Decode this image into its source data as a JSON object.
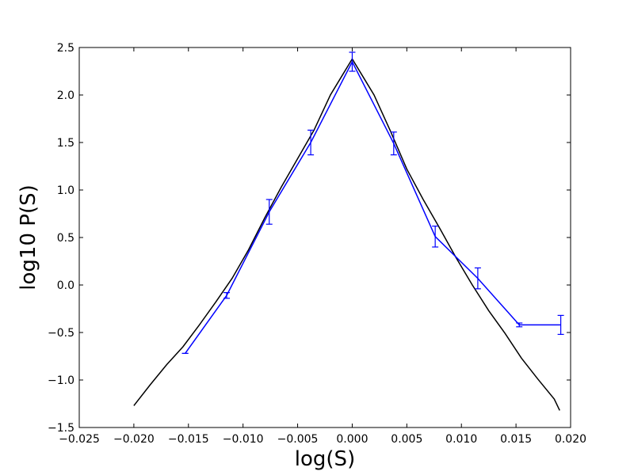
{
  "chart_data": {
    "type": "line",
    "title": "",
    "xlabel": "log(S)",
    "ylabel": "log10 P(S)",
    "xlim": [
      -0.025,
      0.02
    ],
    "ylim": [
      -1.5,
      2.5
    ],
    "xticks": [
      -0.025,
      -0.02,
      -0.015,
      -0.01,
      -0.005,
      0.0,
      0.005,
      0.01,
      0.015,
      0.02
    ],
    "xtick_labels": [
      "−0.025",
      "−0.020",
      "−0.015",
      "−0.010",
      "−0.005",
      "0.000",
      "0.005",
      "0.010",
      "0.015",
      "0.020"
    ],
    "yticks": [
      -1.5,
      -1.0,
      -0.5,
      0.0,
      0.5,
      1.0,
      1.5,
      2.0,
      2.5
    ],
    "ytick_labels": [
      "−1.5",
      "−1.0",
      "−0.5",
      "0.0",
      "0.5",
      "1.0",
      "1.5",
      "2.0",
      "2.5"
    ],
    "grid": false,
    "legend": "none",
    "series": [
      {
        "color": "#0000ff",
        "style": "line-with-errorbars",
        "x": [
          -0.0153,
          -0.0115,
          -0.0076,
          -0.0038,
          0.0,
          0.0038,
          0.0076,
          0.0115,
          0.0153,
          0.0191
        ],
        "y": [
          -0.72,
          -0.11,
          0.77,
          1.5,
          2.35,
          1.49,
          0.51,
          0.07,
          -0.42,
          -0.42
        ],
        "yerr": [
          0.0,
          0.03,
          0.13,
          0.13,
          0.1,
          0.12,
          0.11,
          0.11,
          0.02,
          0.1
        ]
      },
      {
        "color": "#000000",
        "style": "line",
        "x": [
          -0.02,
          -0.0185,
          -0.017,
          -0.0155,
          -0.014,
          -0.0125,
          -0.011,
          -0.0095,
          -0.008,
          -0.0065,
          -0.005,
          -0.0035,
          -0.002,
          -0.001,
          0.0,
          0.001,
          0.002,
          0.0035,
          0.005,
          0.0065,
          0.008,
          0.0095,
          0.011,
          0.0125,
          0.014,
          0.0155,
          0.017,
          0.0185,
          0.019
        ],
        "y": [
          -1.27,
          -1.05,
          -0.84,
          -0.65,
          -0.42,
          -0.18,
          0.07,
          0.37,
          0.71,
          1.03,
          1.33,
          1.63,
          2.0,
          2.19,
          2.38,
          2.19,
          2.0,
          1.62,
          1.22,
          0.9,
          0.6,
          0.29,
          0.0,
          -0.27,
          -0.51,
          -0.77,
          -0.99,
          -1.2,
          -1.32
        ]
      }
    ]
  }
}
